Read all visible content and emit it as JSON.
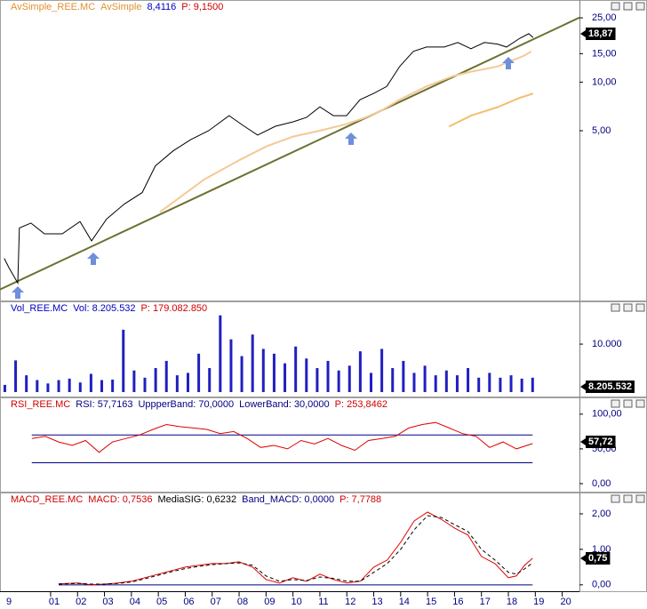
{
  "chart_data": [
    {
      "type": "line",
      "log": true,
      "header": [
        {
          "text": "AvSimple_REE.MC",
          "color": "#e09030"
        },
        {
          "text": "AvSimple",
          "color": "#e09030"
        },
        {
          "text": "8,4116",
          "color": "#0000c0"
        },
        {
          "text": "P: 9,1500",
          "color": "#d00000"
        }
      ],
      "xlim": [
        1999.12,
        2020.64
      ],
      "ylim": [
        0.45,
        27
      ],
      "yticks": [
        {
          "value": 5,
          "label": "5,00"
        },
        {
          "value": 10,
          "label": "10,00"
        },
        {
          "value": 15,
          "label": "15,00"
        },
        {
          "value": 25,
          "label": "25,00"
        }
      ],
      "last_label": "18,87",
      "series": [
        {
          "color": "#6b7030",
          "width": 2,
          "x": [
            1999.12,
            2020.64
          ],
          "values": [
            0.52,
            25.1
          ]
        },
        {
          "color": "#f5c896",
          "width": 2,
          "x": [
            2005.06,
            2006.71,
            2008.03,
            2009.02,
            2010.01,
            2011.0,
            2011.99,
            2012.65,
            2013.31,
            2013.97,
            2014.96,
            2015.95,
            2016.61,
            2017.6,
            2018.59,
            2018.85
          ],
          "values": [
            1.57,
            2.5,
            3.3,
            4.0,
            4.6,
            5.0,
            5.5,
            6.0,
            6.7,
            7.8,
            9.4,
            10.9,
            11.6,
            12.5,
            14.6,
            15.5
          ]
        },
        {
          "color": "#f0c070",
          "width": 2,
          "x": [
            2015.79,
            2016.61,
            2017.6,
            2018.43,
            2018.92
          ],
          "values": [
            5.3,
            6.2,
            7.0,
            8.0,
            8.5
          ]
        },
        {
          "color": "#000000",
          "width": 1,
          "x": [
            1999.28,
            1999.45,
            1999.78,
            1999.84,
            2000.27,
            2000.77,
            2001.43,
            2002.09,
            2002.52,
            2003.08,
            2003.74,
            2004.4,
            2004.89,
            2005.55,
            2006.21,
            2006.87,
            2007.63,
            2008.19,
            2008.69,
            2009.35,
            2010.01,
            2010.5,
            2011.0,
            2011.5,
            2011.99,
            2012.49,
            2012.98,
            2013.48,
            2013.97,
            2014.47,
            2014.96,
            2015.62,
            2016.12,
            2016.61,
            2017.11,
            2017.6,
            2017.93,
            2018.43,
            2018.76,
            2018.92
          ],
          "values": [
            0.81,
            0.71,
            0.57,
            1.25,
            1.34,
            1.15,
            1.15,
            1.37,
            1.04,
            1.42,
            1.76,
            2.07,
            3.03,
            3.75,
            4.41,
            5.0,
            6.2,
            5.33,
            4.7,
            5.33,
            5.68,
            6.04,
            7.03,
            6.2,
            6.2,
            7.78,
            8.49,
            9.39,
            12.54,
            15.5,
            16.5,
            16.5,
            17.6,
            16.1,
            17.6,
            17.2,
            16.5,
            18.7,
            19.95,
            18.87
          ]
        }
      ]
    },
    {
      "type": "bar",
      "header": [
        {
          "text": "Vol_REE.MC",
          "color": "#0000c0"
        },
        {
          "text": "Vol: 8.205.532",
          "color": "#0000c0"
        },
        {
          "text": "P: 179.082.850",
          "color": "#d00000"
        }
      ],
      "xlim": [
        1999.12,
        2020.64
      ],
      "ylim": [
        0,
        16500
      ],
      "yticks": [
        {
          "value": 10000,
          "label": "10.000"
        }
      ],
      "last_label": "8.205.532",
      "series": [
        {
          "color": "#2020c0",
          "x": [
            1999.3,
            1999.7,
            2000.1,
            2000.5,
            2000.9,
            2001.3,
            2001.7,
            2002.1,
            2002.5,
            2002.9,
            2003.3,
            2003.7,
            2004.1,
            2004.5,
            2004.9,
            2005.3,
            2005.7,
            2006.1,
            2006.5,
            2006.9,
            2007.3,
            2007.7,
            2008.1,
            2008.5,
            2008.9,
            2009.3,
            2009.7,
            2010.1,
            2010.5,
            2010.9,
            2011.3,
            2011.7,
            2012.1,
            2012.5,
            2012.9,
            2013.3,
            2013.7,
            2014.1,
            2014.5,
            2014.9,
            2015.3,
            2015.7,
            2016.1,
            2016.5,
            2016.9,
            2017.3,
            2017.7,
            2018.1,
            2018.5,
            2018.9
          ],
          "values": [
            1500,
            6600,
            3500,
            2500,
            1800,
            2500,
            2800,
            2000,
            3800,
            2500,
            2600,
            13000,
            4500,
            3000,
            5000,
            6500,
            3500,
            4000,
            8000,
            5000,
            16000,
            11000,
            7500,
            12000,
            9000,
            8000,
            6000,
            9500,
            7000,
            5000,
            6500,
            4500,
            5500,
            8500,
            4000,
            9000,
            5000,
            6500,
            4000,
            5500,
            3500,
            4500,
            3500,
            5000,
            3000,
            4000,
            3000,
            3500,
            2800,
            3000
          ]
        }
      ]
    },
    {
      "type": "line",
      "header": [
        {
          "text": "RSI_REE.MC",
          "color": "#d00000"
        },
        {
          "text": "RSI: 57,7163",
          "color": "#000080"
        },
        {
          "text": "UppperBand: 70,0000",
          "color": "#000080"
        },
        {
          "text": "LowerBand: 30,0000",
          "color": "#000080"
        },
        {
          "text": "P: 253,8462",
          "color": "#d00000"
        }
      ],
      "xlim": [
        1999.12,
        2020.64
      ],
      "ylim": [
        -7.7,
        110
      ],
      "yticks": [
        {
          "value": 100,
          "label": "100,00"
        },
        {
          "value": 50,
          "label": "50,00"
        },
        {
          "value": 0,
          "label": "0,00"
        }
      ],
      "bands": [
        70,
        30
      ],
      "band_color": "#000080",
      "last_label": "57,72",
      "series": [
        {
          "color": "#e00000",
          "width": 1,
          "x": [
            2000.3,
            2000.8,
            2001.3,
            2001.8,
            2002.3,
            2002.8,
            2003.3,
            2003.8,
            2004.3,
            2004.8,
            2005.3,
            2005.8,
            2006.3,
            2006.8,
            2007.3,
            2007.8,
            2008.3,
            2008.8,
            2009.3,
            2009.8,
            2010.3,
            2010.8,
            2011.3,
            2011.8,
            2012.3,
            2012.8,
            2013.3,
            2013.8,
            2014.3,
            2014.8,
            2015.3,
            2015.8,
            2016.3,
            2016.8,
            2017.3,
            2017.8,
            2018.3,
            2018.9
          ],
          "values": [
            65,
            68,
            60,
            55,
            62,
            45,
            60,
            65,
            70,
            78,
            85,
            82,
            80,
            78,
            72,
            75,
            65,
            52,
            55,
            50,
            62,
            57,
            65,
            55,
            48,
            62,
            65,
            68,
            80,
            85,
            88,
            80,
            72,
            68,
            52,
            60,
            50,
            57.72
          ]
        }
      ]
    },
    {
      "type": "line",
      "header": [
        {
          "text": "MACD_REE.MC",
          "color": "#d00000"
        },
        {
          "text": "MACD: 0,7536",
          "color": "#d00000"
        },
        {
          "text": "MediaSIG: 0,6232",
          "color": "#000000"
        },
        {
          "text": "Band_MACD: 0,0000",
          "color": "#000080"
        },
        {
          "text": "P: 7,7788",
          "color": "#d00000"
        }
      ],
      "xlim": [
        1999.12,
        2020.64
      ],
      "ylim": [
        -0.18,
        2.25
      ],
      "yticks": [
        {
          "value": 2,
          "label": "2,00"
        },
        {
          "value": 1,
          "label": "1,00"
        },
        {
          "value": 0,
          "label": "0,00"
        }
      ],
      "bands": [
        0
      ],
      "band_color": "#000080",
      "last_label": "0,75",
      "xticks": [
        {
          "value": 1999,
          "label": "9"
        },
        {
          "value": 2001,
          "label": "01"
        },
        {
          "value": 2002,
          "label": "02"
        },
        {
          "value": 2003,
          "label": "03"
        },
        {
          "value": 2004,
          "label": "04"
        },
        {
          "value": 2005,
          "label": "05"
        },
        {
          "value": 2006,
          "label": "06"
        },
        {
          "value": 2007,
          "label": "07"
        },
        {
          "value": 2008,
          "label": "08"
        },
        {
          "value": 2009,
          "label": "09"
        },
        {
          "value": 2010,
          "label": "10"
        },
        {
          "value": 2011,
          "label": "11"
        },
        {
          "value": 2012,
          "label": "12"
        },
        {
          "value": 2013,
          "label": "13"
        },
        {
          "value": 2014,
          "label": "14"
        },
        {
          "value": 2015,
          "label": "15"
        },
        {
          "value": 2016,
          "label": "16"
        },
        {
          "value": 2017,
          "label": "17"
        },
        {
          "value": 2018,
          "label": "18"
        },
        {
          "value": 2019,
          "label": "19"
        },
        {
          "value": 2020,
          "label": "20"
        }
      ],
      "series": [
        {
          "color": "#e00000",
          "width": 1,
          "x": [
            2001.3,
            2002,
            2002.5,
            2003,
            2003.5,
            2004,
            2004.5,
            2005,
            2005.5,
            2006,
            2006.5,
            2007,
            2007.5,
            2008,
            2008.5,
            2009,
            2009.5,
            2010,
            2010.5,
            2011,
            2011.5,
            2012,
            2012.5,
            2013,
            2013.5,
            2014,
            2014.5,
            2015,
            2015.5,
            2016,
            2016.5,
            2017,
            2017.5,
            2018,
            2018.3,
            2018.6,
            2018.9
          ],
          "values": [
            0.03,
            0.05,
            0.0,
            0.02,
            0.05,
            0.1,
            0.2,
            0.3,
            0.4,
            0.5,
            0.55,
            0.6,
            0.6,
            0.65,
            0.5,
            0.15,
            0.05,
            0.2,
            0.1,
            0.3,
            0.15,
            0.05,
            0.1,
            0.5,
            0.7,
            1.2,
            1.8,
            2.05,
            1.85,
            1.6,
            1.4,
            0.8,
            0.6,
            0.2,
            0.25,
            0.55,
            0.75
          ]
        },
        {
          "color": "#000000",
          "width": 1,
          "dash": true,
          "x": [
            2001.3,
            2002,
            2002.5,
            2003,
            2003.5,
            2004,
            2004.5,
            2005,
            2005.5,
            2006,
            2006.5,
            2007,
            2007.5,
            2008,
            2008.5,
            2009,
            2009.5,
            2010,
            2010.5,
            2011,
            2011.5,
            2012,
            2012.5,
            2013,
            2013.5,
            2014,
            2014.5,
            2015,
            2015.5,
            2016,
            2016.5,
            2017,
            2017.5,
            2018,
            2018.3,
            2018.6,
            2018.9
          ],
          "values": [
            0.02,
            0.04,
            0.02,
            0.02,
            0.04,
            0.08,
            0.17,
            0.27,
            0.37,
            0.46,
            0.52,
            0.57,
            0.6,
            0.62,
            0.55,
            0.25,
            0.1,
            0.15,
            0.12,
            0.22,
            0.18,
            0.1,
            0.1,
            0.35,
            0.6,
            1.0,
            1.55,
            1.95,
            1.9,
            1.7,
            1.5,
            1.0,
            0.7,
            0.35,
            0.3,
            0.45,
            0.62
          ]
        }
      ]
    }
  ]
}
